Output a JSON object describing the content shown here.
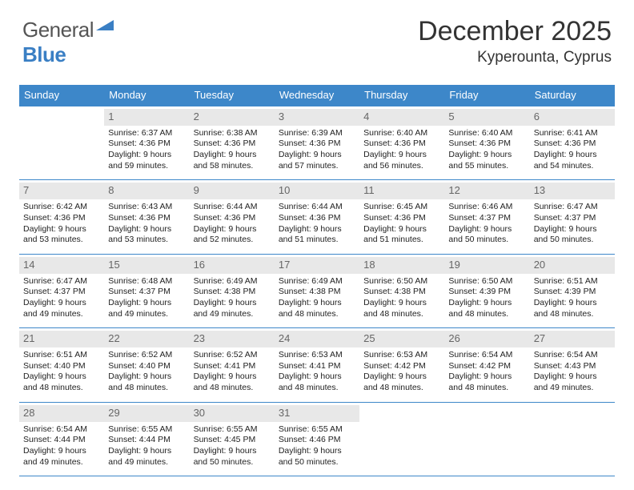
{
  "logo": {
    "text1": "General",
    "text2": "Blue"
  },
  "header": {
    "title": "December 2025",
    "location": "Kyperounta, Cyprus"
  },
  "colors": {
    "header_bg": "#3d87c9",
    "daynum_bg": "#e8e8e8",
    "border": "#3d87c9"
  },
  "days_of_week": [
    "Sunday",
    "Monday",
    "Tuesday",
    "Wednesday",
    "Thursday",
    "Friday",
    "Saturday"
  ],
  "weeks": [
    [
      null,
      {
        "n": "1",
        "sr": "6:37 AM",
        "ss": "4:36 PM",
        "dl": "9 hours",
        "dl2": "and 59 minutes."
      },
      {
        "n": "2",
        "sr": "6:38 AM",
        "ss": "4:36 PM",
        "dl": "9 hours",
        "dl2": "and 58 minutes."
      },
      {
        "n": "3",
        "sr": "6:39 AM",
        "ss": "4:36 PM",
        "dl": "9 hours",
        "dl2": "and 57 minutes."
      },
      {
        "n": "4",
        "sr": "6:40 AM",
        "ss": "4:36 PM",
        "dl": "9 hours",
        "dl2": "and 56 minutes."
      },
      {
        "n": "5",
        "sr": "6:40 AM",
        "ss": "4:36 PM",
        "dl": "9 hours",
        "dl2": "and 55 minutes."
      },
      {
        "n": "6",
        "sr": "6:41 AM",
        "ss": "4:36 PM",
        "dl": "9 hours",
        "dl2": "and 54 minutes."
      }
    ],
    [
      {
        "n": "7",
        "sr": "6:42 AM",
        "ss": "4:36 PM",
        "dl": "9 hours",
        "dl2": "and 53 minutes."
      },
      {
        "n": "8",
        "sr": "6:43 AM",
        "ss": "4:36 PM",
        "dl": "9 hours",
        "dl2": "and 53 minutes."
      },
      {
        "n": "9",
        "sr": "6:44 AM",
        "ss": "4:36 PM",
        "dl": "9 hours",
        "dl2": "and 52 minutes."
      },
      {
        "n": "10",
        "sr": "6:44 AM",
        "ss": "4:36 PM",
        "dl": "9 hours",
        "dl2": "and 51 minutes."
      },
      {
        "n": "11",
        "sr": "6:45 AM",
        "ss": "4:36 PM",
        "dl": "9 hours",
        "dl2": "and 51 minutes."
      },
      {
        "n": "12",
        "sr": "6:46 AM",
        "ss": "4:37 PM",
        "dl": "9 hours",
        "dl2": "and 50 minutes."
      },
      {
        "n": "13",
        "sr": "6:47 AM",
        "ss": "4:37 PM",
        "dl": "9 hours",
        "dl2": "and 50 minutes."
      }
    ],
    [
      {
        "n": "14",
        "sr": "6:47 AM",
        "ss": "4:37 PM",
        "dl": "9 hours",
        "dl2": "and 49 minutes."
      },
      {
        "n": "15",
        "sr": "6:48 AM",
        "ss": "4:37 PM",
        "dl": "9 hours",
        "dl2": "and 49 minutes."
      },
      {
        "n": "16",
        "sr": "6:49 AM",
        "ss": "4:38 PM",
        "dl": "9 hours",
        "dl2": "and 49 minutes."
      },
      {
        "n": "17",
        "sr": "6:49 AM",
        "ss": "4:38 PM",
        "dl": "9 hours",
        "dl2": "and 48 minutes."
      },
      {
        "n": "18",
        "sr": "6:50 AM",
        "ss": "4:38 PM",
        "dl": "9 hours",
        "dl2": "and 48 minutes."
      },
      {
        "n": "19",
        "sr": "6:50 AM",
        "ss": "4:39 PM",
        "dl": "9 hours",
        "dl2": "and 48 minutes."
      },
      {
        "n": "20",
        "sr": "6:51 AM",
        "ss": "4:39 PM",
        "dl": "9 hours",
        "dl2": "and 48 minutes."
      }
    ],
    [
      {
        "n": "21",
        "sr": "6:51 AM",
        "ss": "4:40 PM",
        "dl": "9 hours",
        "dl2": "and 48 minutes."
      },
      {
        "n": "22",
        "sr": "6:52 AM",
        "ss": "4:40 PM",
        "dl": "9 hours",
        "dl2": "and 48 minutes."
      },
      {
        "n": "23",
        "sr": "6:52 AM",
        "ss": "4:41 PM",
        "dl": "9 hours",
        "dl2": "and 48 minutes."
      },
      {
        "n": "24",
        "sr": "6:53 AM",
        "ss": "4:41 PM",
        "dl": "9 hours",
        "dl2": "and 48 minutes."
      },
      {
        "n": "25",
        "sr": "6:53 AM",
        "ss": "4:42 PM",
        "dl": "9 hours",
        "dl2": "and 48 minutes."
      },
      {
        "n": "26",
        "sr": "6:54 AM",
        "ss": "4:42 PM",
        "dl": "9 hours",
        "dl2": "and 48 minutes."
      },
      {
        "n": "27",
        "sr": "6:54 AM",
        "ss": "4:43 PM",
        "dl": "9 hours",
        "dl2": "and 49 minutes."
      }
    ],
    [
      {
        "n": "28",
        "sr": "6:54 AM",
        "ss": "4:44 PM",
        "dl": "9 hours",
        "dl2": "and 49 minutes."
      },
      {
        "n": "29",
        "sr": "6:55 AM",
        "ss": "4:44 PM",
        "dl": "9 hours",
        "dl2": "and 49 minutes."
      },
      {
        "n": "30",
        "sr": "6:55 AM",
        "ss": "4:45 PM",
        "dl": "9 hours",
        "dl2": "and 50 minutes."
      },
      {
        "n": "31",
        "sr": "6:55 AM",
        "ss": "4:46 PM",
        "dl": "9 hours",
        "dl2": "and 50 minutes."
      },
      null,
      null,
      null
    ]
  ],
  "labels": {
    "sunrise": "Sunrise: ",
    "sunset": "Sunset: ",
    "daylight": "Daylight: "
  }
}
